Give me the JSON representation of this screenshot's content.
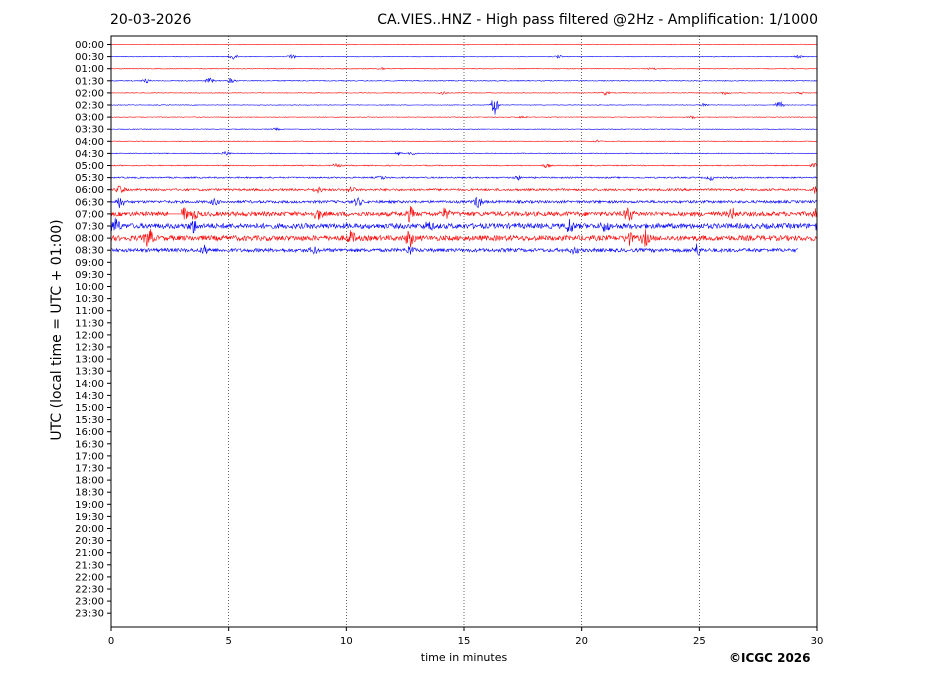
{
  "header": {
    "date": "20-03-2026",
    "station_title": "CA.VIES..HNZ - High pass filtered @2Hz - Amplification: 1/1000"
  },
  "footer": {
    "credit": "©ICGC 2026"
  },
  "colors": {
    "red": "#ff0000",
    "blue": "#0000ff",
    "grid": "#000000"
  },
  "chart_data": {
    "type": "line",
    "title": "CA.VIES..HNZ - High pass filtered @2Hz - Amplification: 1/1000",
    "xlabel": "time in minutes",
    "ylabel": "UTC (local time = UTC + 01:00)",
    "xlim": [
      0,
      30
    ],
    "xticks": [
      0,
      5,
      10,
      15,
      20,
      25,
      30
    ],
    "grid": "vertical dotted lines at 5-minute intervals",
    "row_labels": [
      "00:00",
      "00:30",
      "01:00",
      "01:30",
      "02:00",
      "02:30",
      "03:00",
      "03:30",
      "04:00",
      "04:30",
      "05:00",
      "05:30",
      "06:00",
      "06:30",
      "07:00",
      "07:30",
      "08:00",
      "08:30",
      "09:00",
      "09:30",
      "10:00",
      "10:30",
      "11:00",
      "11:30",
      "12:00",
      "12:30",
      "13:00",
      "13:30",
      "14:00",
      "14:30",
      "15:00",
      "15:30",
      "16:00",
      "16:30",
      "17:00",
      "17:30",
      "18:00",
      "18:30",
      "19:00",
      "19:30",
      "20:00",
      "20:30",
      "21:00",
      "21:30",
      "22:00",
      "22:30",
      "23:00",
      "23:30"
    ],
    "series": [
      {
        "row": "00:00",
        "color": "red",
        "end_min": 30,
        "noise": 0.3,
        "events": []
      },
      {
        "row": "00:30",
        "color": "blue",
        "end_min": 30,
        "noise": 0.3,
        "events": [
          [
            5.2,
            3
          ],
          [
            7.7,
            3
          ],
          [
            19,
            1.5
          ],
          [
            29.2,
            1.5
          ]
        ]
      },
      {
        "row": "01:00",
        "color": "red",
        "end_min": 30,
        "noise": 0.3,
        "events": [
          [
            11.5,
            1.5
          ],
          [
            23,
            1.2
          ]
        ]
      },
      {
        "row": "01:30",
        "color": "blue",
        "end_min": 30,
        "noise": 0.4,
        "events": [
          [
            1.5,
            2
          ],
          [
            4.2,
            3
          ],
          [
            5.1,
            2.5
          ]
        ]
      },
      {
        "row": "02:00",
        "color": "red",
        "end_min": 30,
        "noise": 0.3,
        "events": [
          [
            14.1,
            2
          ],
          [
            21,
            2
          ],
          [
            26.1,
            1.5
          ],
          [
            29.3,
            1.5
          ]
        ]
      },
      {
        "row": "02:30",
        "color": "blue",
        "end_min": 30,
        "noise": 0.3,
        "events": [
          [
            16.3,
            12
          ],
          [
            25.2,
            2
          ],
          [
            28.4,
            4
          ]
        ]
      },
      {
        "row": "03:00",
        "color": "red",
        "end_min": 30,
        "noise": 0.3,
        "events": [
          [
            17.5,
            1.2
          ],
          [
            24.7,
            1.2
          ]
        ]
      },
      {
        "row": "03:30",
        "color": "blue",
        "end_min": 30,
        "noise": 0.3,
        "events": [
          [
            7,
            1.2
          ]
        ]
      },
      {
        "row": "04:00",
        "color": "red",
        "end_min": 30,
        "noise": 0.3,
        "events": [
          [
            20.7,
            1.2
          ]
        ]
      },
      {
        "row": "04:30",
        "color": "blue",
        "end_min": 30,
        "noise": 0.4,
        "events": [
          [
            4.9,
            2
          ],
          [
            12.2,
            2
          ],
          [
            12.8,
            1.5
          ]
        ]
      },
      {
        "row": "05:00",
        "color": "red",
        "end_min": 30,
        "noise": 0.5,
        "events": [
          [
            9.6,
            2
          ],
          [
            18.5,
            2
          ],
          [
            29.9,
            2
          ]
        ]
      },
      {
        "row": "05:30",
        "color": "blue",
        "end_min": 30,
        "noise": 0.7,
        "events": [
          [
            11.5,
            2
          ],
          [
            17.3,
            2
          ],
          [
            25.5,
            2.5
          ]
        ]
      },
      {
        "row": "06:00",
        "color": "red",
        "end_min": 30,
        "noise": 1.1,
        "events": [
          [
            0.4,
            4
          ],
          [
            8.8,
            3
          ],
          [
            10.2,
            3
          ],
          [
            30,
            5
          ]
        ]
      },
      {
        "row": "06:30",
        "color": "blue",
        "end_min": 30,
        "noise": 1.3,
        "events": [
          [
            0.4,
            6
          ],
          [
            4.4,
            3
          ],
          [
            10.5,
            4
          ],
          [
            15.6,
            6
          ]
        ]
      },
      {
        "row": "07:00",
        "color": "red",
        "end_min": 30,
        "noise": 2.2,
        "gap": [
          2.4,
          3.0
        ],
        "events": [
          [
            3.1,
            6
          ],
          [
            3.5,
            5
          ],
          [
            8.8,
            5
          ],
          [
            12.7,
            7
          ],
          [
            14.2,
            5
          ],
          [
            22,
            8
          ],
          [
            26.4,
            5
          ],
          [
            30,
            6
          ]
        ]
      },
      {
        "row": "07:30",
        "color": "blue",
        "end_min": 30,
        "noise": 2.6,
        "events": [
          [
            0.2,
            8
          ],
          [
            3.5,
            6
          ],
          [
            13.5,
            4
          ],
          [
            19.5,
            7
          ],
          [
            21,
            5
          ],
          [
            30,
            5
          ]
        ]
      },
      {
        "row": "08:00",
        "color": "red",
        "end_min": 30,
        "noise": 2.6,
        "events": [
          [
            1.6,
            10
          ],
          [
            10.2,
            6
          ],
          [
            12.7,
            8
          ],
          [
            22,
            6
          ],
          [
            22.7,
            7
          ]
        ]
      },
      {
        "row": "08:30",
        "color": "blue",
        "end_min": 29.2,
        "noise": 1.8,
        "events": [
          [
            4,
            4
          ],
          [
            8.6,
            3
          ],
          [
            12.7,
            4
          ],
          [
            19.7,
            3
          ],
          [
            24.9,
            6
          ]
        ]
      }
    ]
  }
}
